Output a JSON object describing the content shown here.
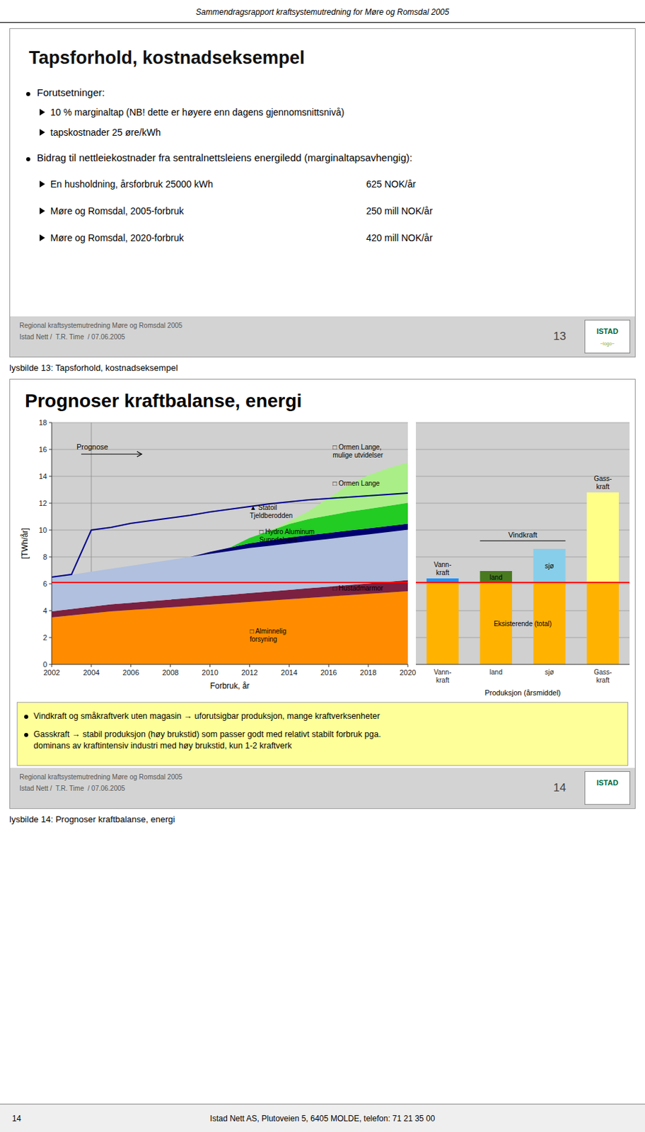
{
  "chart_data": [
    {
      "type": "area",
      "stacked": true,
      "title": "Prognoser kraftbalanse, energi",
      "x": [
        2002,
        2003,
        2004,
        2005,
        2006,
        2007,
        2008,
        2009,
        2010,
        2011,
        2012,
        2013,
        2014,
        2015,
        2016,
        2017,
        2018,
        2019,
        2020
      ],
      "xlim": [
        2002,
        2020
      ],
      "ylim": [
        0,
        18
      ],
      "xticks": [
        2002,
        2004,
        2006,
        2008,
        2010,
        2012,
        2014,
        2016,
        2018,
        2020
      ],
      "yticks": [
        0,
        2,
        4,
        6,
        8,
        10,
        12,
        14,
        16,
        18
      ],
      "xlabel": "Forbruk, år",
      "ylabel": "[TWh/år]",
      "grid": true,
      "series": [
        {
          "name": "□ Alminnelig\nforsyning",
          "color": "#FF8C00",
          "values": [
            3.5,
            3.65,
            3.8,
            3.95,
            4.05,
            4.15,
            4.25,
            4.35,
            4.45,
            4.55,
            4.65,
            4.75,
            4.85,
            4.95,
            5.05,
            5.15,
            5.25,
            5.35,
            5.45
          ]
        },
        {
          "name": "□ Hustadmarmor",
          "color": "#7B2040",
          "values": [
            0.45,
            0.47,
            0.5,
            0.52,
            0.54,
            0.56,
            0.58,
            0.6,
            0.62,
            0.64,
            0.66,
            0.68,
            0.7,
            0.72,
            0.74,
            0.76,
            0.78,
            0.8,
            0.82
          ]
        },
        {
          "name": "□ Hydro Aluminum\nSunndalsøra",
          "color": "#B0C0DE",
          "values": [
            2.5,
            2.55,
            2.6,
            2.65,
            2.75,
            2.85,
            2.95,
            3.05,
            3.15,
            3.25,
            3.35,
            3.4,
            3.45,
            3.5,
            3.55,
            3.6,
            3.65,
            3.7,
            3.75
          ]
        },
        {
          "name": "▲ Statoil\nTjeldberodden",
          "color": "#000070",
          "values": [
            0.0,
            0.0,
            0.0,
            0.0,
            0.0,
            0.0,
            0.0,
            0.0,
            0.15,
            0.25,
            0.35,
            0.4,
            0.45,
            0.45,
            0.45,
            0.45,
            0.45,
            0.45,
            0.45
          ]
        },
        {
          "name": "□ Ormen Lange",
          "color": "#22CC22",
          "values": [
            0.0,
            0.0,
            0.0,
            0.0,
            0.0,
            0.0,
            0.0,
            0.0,
            0.0,
            0.0,
            0.4,
            0.7,
            1.0,
            1.2,
            1.3,
            1.4,
            1.45,
            1.5,
            1.55
          ]
        },
        {
          "name": "□ Ormen Lange,\nmulige utvidelser",
          "color": "#AAEE88",
          "values": [
            0.0,
            0.0,
            0.0,
            0.0,
            0.0,
            0.0,
            0.0,
            0.0,
            0.0,
            0.0,
            0.0,
            0.0,
            0.2,
            0.6,
            1.3,
            2.0,
            2.5,
            2.8,
            3.0
          ]
        },
        {
          "type": "line",
          "color": "#00008B",
          "values": [
            6.5,
            6.7,
            10.0,
            10.2,
            10.5,
            10.7,
            10.9,
            11.1,
            11.35,
            11.55,
            11.75,
            11.95,
            12.1,
            12.25,
            12.35,
            12.45,
            12.55,
            12.65,
            12.75
          ]
        }
      ],
      "reference_lines": [
        {
          "axis": "y",
          "value": 6.1,
          "color": "#FF0000"
        },
        {
          "axis": "x",
          "value": 2004
        }
      ],
      "annotations": [
        {
          "text": "Prognose"
        }
      ]
    },
    {
      "type": "bar",
      "stacked": true,
      "categories": [
        "Vann-\nkraft",
        "land",
        "sjø",
        "Gass-\nkraft"
      ],
      "xlabel": "Produksjon (årsmiddel)",
      "ylim": [
        0,
        18
      ],
      "yticks": [
        0,
        2,
        4,
        6,
        8,
        10,
        12,
        14,
        16,
        18
      ],
      "grid": true,
      "tick_labels": "x",
      "series": [
        {
          "name": "Eksisterende (total)",
          "color": "#FFB300",
          "values": [
            6.1,
            6.1,
            6.1,
            6.1
          ]
        },
        {
          "colors": [
            "#1E90FF",
            "#4A7A20",
            "#87CEEB",
            "#FFFF88"
          ],
          "values": [
            0.3,
            0.85,
            2.5,
            6.7
          ]
        }
      ],
      "reference_lines": [
        {
          "axis": "y",
          "value": 6.1,
          "color": "#FF0000"
        }
      ],
      "annotations": [
        {
          "text": "Vindkraft",
          "categories": [
            "land",
            "sjø"
          ]
        }
      ]
    }
  ],
  "page": {
    "header": "Sammendragsrapport kraftsystemutredning for Møre og Romsdal 2005",
    "slides": [
      {
        "title": "Tapsforhold, kostnadseksempel",
        "bullets": [
          {
            "text": "Forutsetninger:",
            "sub": [
              {
                "label": "10 % marginaltap (NB! dette er høyere enn dagens gjennomsnittsnivå)"
              },
              {
                "label": "tapskostnader 25 øre/kWh"
              }
            ]
          },
          {
            "text": "Bidrag til nettleiekostnader fra sentralnettsleiens energiledd (marginaltapsavhengig):",
            "sub": [
              {
                "label": "En husholdning, årsforbruk 25000 kWh",
                "amount": "625 NOK/år"
              },
              {
                "label": "Møre og Romsdal, 2005-forbruk",
                "amount": "250 mill NOK/år"
              },
              {
                "label": "Møre og Romsdal, 2020-forbruk",
                "amount": "420 mill NOK/år"
              }
            ]
          }
        ],
        "footer": [
          "Regional kraftsystemutredning Møre og Romsdal 2005",
          "Istad Nett /  T.R. Time  / 07.06.2005"
        ],
        "number": "13",
        "caption": "lysbilde 13: Tapsforhold, kostnadseksempel"
      },
      {
        "bullets": [
          "Vindkraft og småkraftverk uten magasin → uforutsigbar produksjon, mange kraftverksenheter",
          "Gasskraft → stabil produksjon (høy brukstid) som passer godt med relativt stabilt forbruk pga.\ndominans av kraftintensiv industri med høy brukstid, kun 1-2 kraftverk"
        ],
        "footer": [
          "Regional kraftsystemutredning Møre og Romsdal 2005",
          "Istad Nett /  T.R. Time  / 07.06.2005"
        ],
        "number": "14",
        "caption": "lysbilde 14: Prognoser kraftbalanse, energi"
      }
    ],
    "logo": [
      "ISTAD",
      "~logo~"
    ],
    "bottom": [
      "14",
      "Istad Nett AS, Plutoveien 5, 6405 MOLDE, telefon: 71 21 35 00"
    ]
  }
}
